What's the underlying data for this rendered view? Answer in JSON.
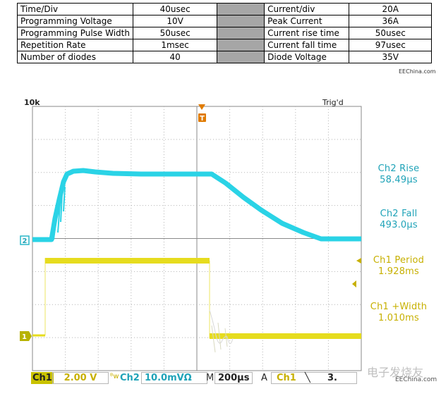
{
  "table": {
    "rows": [
      {
        "label": "Time/Div",
        "value": "40usec",
        "label2": "Current/div",
        "value2": "20A"
      },
      {
        "label": "Programming Voltage",
        "value": "10V",
        "label2": "Peak Current",
        "value2": "36A"
      },
      {
        "label": "Programming Pulse Width",
        "value": "50usec",
        "label2": "Current rise time",
        "value2": "50usec"
      },
      {
        "label": "Repetition Rate",
        "value": "1msec",
        "label2": "Current fall time",
        "value2": "97usec"
      },
      {
        "label": "Number of diodes",
        "value": "40",
        "label2": "Diode Voltage",
        "value2": "35V"
      }
    ],
    "watermark": "EEChina.com"
  },
  "scope": {
    "top_left_fragment": "10k",
    "top_right_fragment": "Trig'd",
    "trigger_marker": "T",
    "ch2_marker": "2",
    "ch1_marker": "1",
    "measurements": [
      {
        "name": "Ch2 Rise",
        "value": "58.49µs",
        "color": "#1fa3b8"
      },
      {
        "name": "Ch2 Fall",
        "value": "493.0µs",
        "color": "#1fa3b8"
      },
      {
        "name": "Ch1 Period",
        "value": "1.928ms",
        "color": "#c7b000"
      },
      {
        "name": "Ch1 +Width",
        "value": "1.010ms",
        "color": "#c7b000"
      }
    ],
    "status": {
      "ch1_label": "Ch1",
      "ch1_scale": "2.00 V",
      "bw_mark": "ᴮ",
      "ch2_label": "Ch2",
      "ch2_scale": "10.0mVΩ",
      "time_prefix": "M",
      "timebase": "200µs",
      "trigger_prefix": "A",
      "trigger_source": "Ch1",
      "trigger_slope": "╲",
      "trigger_level": "3."
    },
    "bottom_watermark": "EEChina.com",
    "bottom_watermark_cn": "电子发烧友"
  },
  "colors": {
    "ch1": "#e6dc1e",
    "ch2": "#2ad3e6",
    "grid": "#9a9a9a",
    "trigger": "#e07b00"
  }
}
